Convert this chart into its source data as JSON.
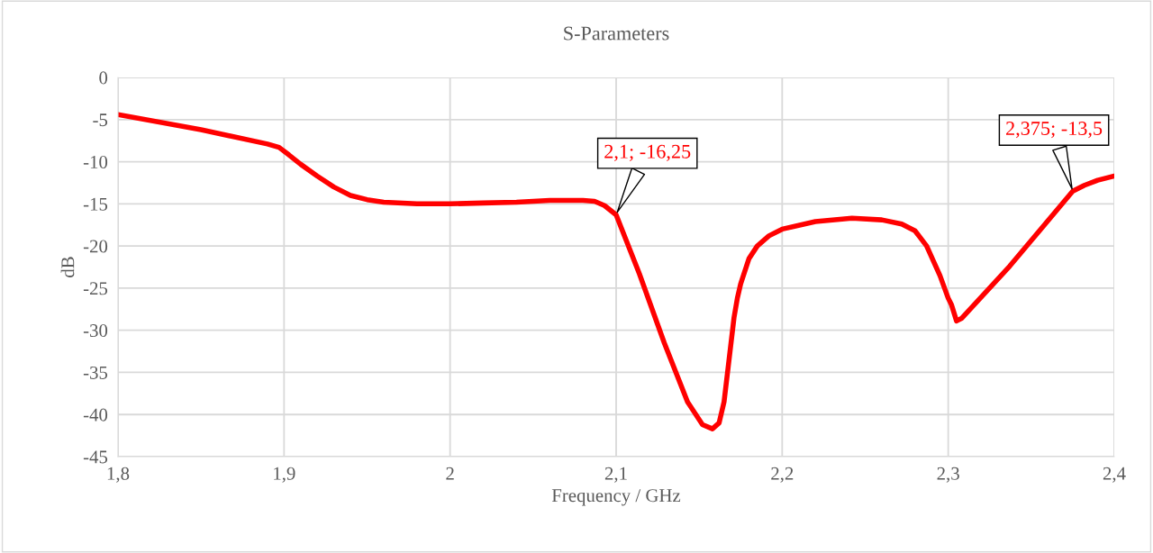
{
  "chart_data": {
    "type": "line",
    "title": "S-Parameters",
    "xlabel": "Frequency / GHz",
    "ylabel": "dB",
    "series": [
      {
        "color": "#ff0000",
        "x": [
          1.8,
          1.85,
          1.89,
          1.897,
          1.903,
          1.91,
          1.92,
          1.93,
          1.94,
          1.95,
          1.96,
          1.98,
          2.0,
          2.02,
          2.04,
          2.06,
          2.07,
          2.08,
          2.087,
          2.093,
          2.1,
          2.114,
          2.129,
          2.143,
          2.152,
          2.158,
          2.162,
          2.165,
          2.168,
          2.171,
          2.173,
          2.175,
          2.18,
          2.185,
          2.192,
          2.2,
          2.22,
          2.242,
          2.26,
          2.272,
          2.28,
          2.287,
          2.295,
          2.3,
          2.302,
          2.305,
          2.308,
          2.337,
          2.375,
          2.382,
          2.39,
          2.4
        ],
        "values": [
          -4.4,
          -6.2,
          -7.9,
          -8.3,
          -9.2,
          -10.3,
          -11.7,
          -13.0,
          -14.0,
          -14.5,
          -14.8,
          -15.0,
          -15.0,
          -14.9,
          -14.8,
          -14.6,
          -14.6,
          -14.6,
          -14.7,
          -15.2,
          -16.3,
          -23.3,
          -31.5,
          -38.5,
          -41.2,
          -41.7,
          -41.0,
          -38.5,
          -33.5,
          -28.5,
          -26.2,
          -24.5,
          -21.5,
          -20.0,
          -18.8,
          -18.0,
          -17.1,
          -16.7,
          -16.9,
          -17.4,
          -18.2,
          -20.0,
          -23.5,
          -26.2,
          -27.0,
          -28.9,
          -28.6,
          -22.4,
          -13.5,
          -12.8,
          -12.2,
          -11.7
        ]
      }
    ],
    "xlim": [
      1.8,
      2.4
    ],
    "ylim": [
      -45,
      0
    ],
    "xticks": [
      {
        "value": 1.8,
        "label": "1,8"
      },
      {
        "value": 1.9,
        "label": "1,9"
      },
      2,
      {
        "value": 2.1,
        "label": "2,1"
      },
      {
        "value": 2.2,
        "label": "2,2"
      },
      {
        "value": 2.3,
        "label": "2,3"
      },
      {
        "value": 2.4,
        "label": "2,4"
      }
    ],
    "yticks": [
      -45,
      -40,
      -35,
      -30,
      -25,
      -20,
      -15,
      -10,
      -5,
      0
    ],
    "grid": true,
    "marker": "none",
    "line_style": "solid",
    "annotations": [
      {
        "text": "2,1; -16,25",
        "x": 2.1,
        "y": -16.25
      },
      {
        "text": "2,375; -13,5",
        "x": 2.375,
        "y": -13.5
      }
    ]
  }
}
